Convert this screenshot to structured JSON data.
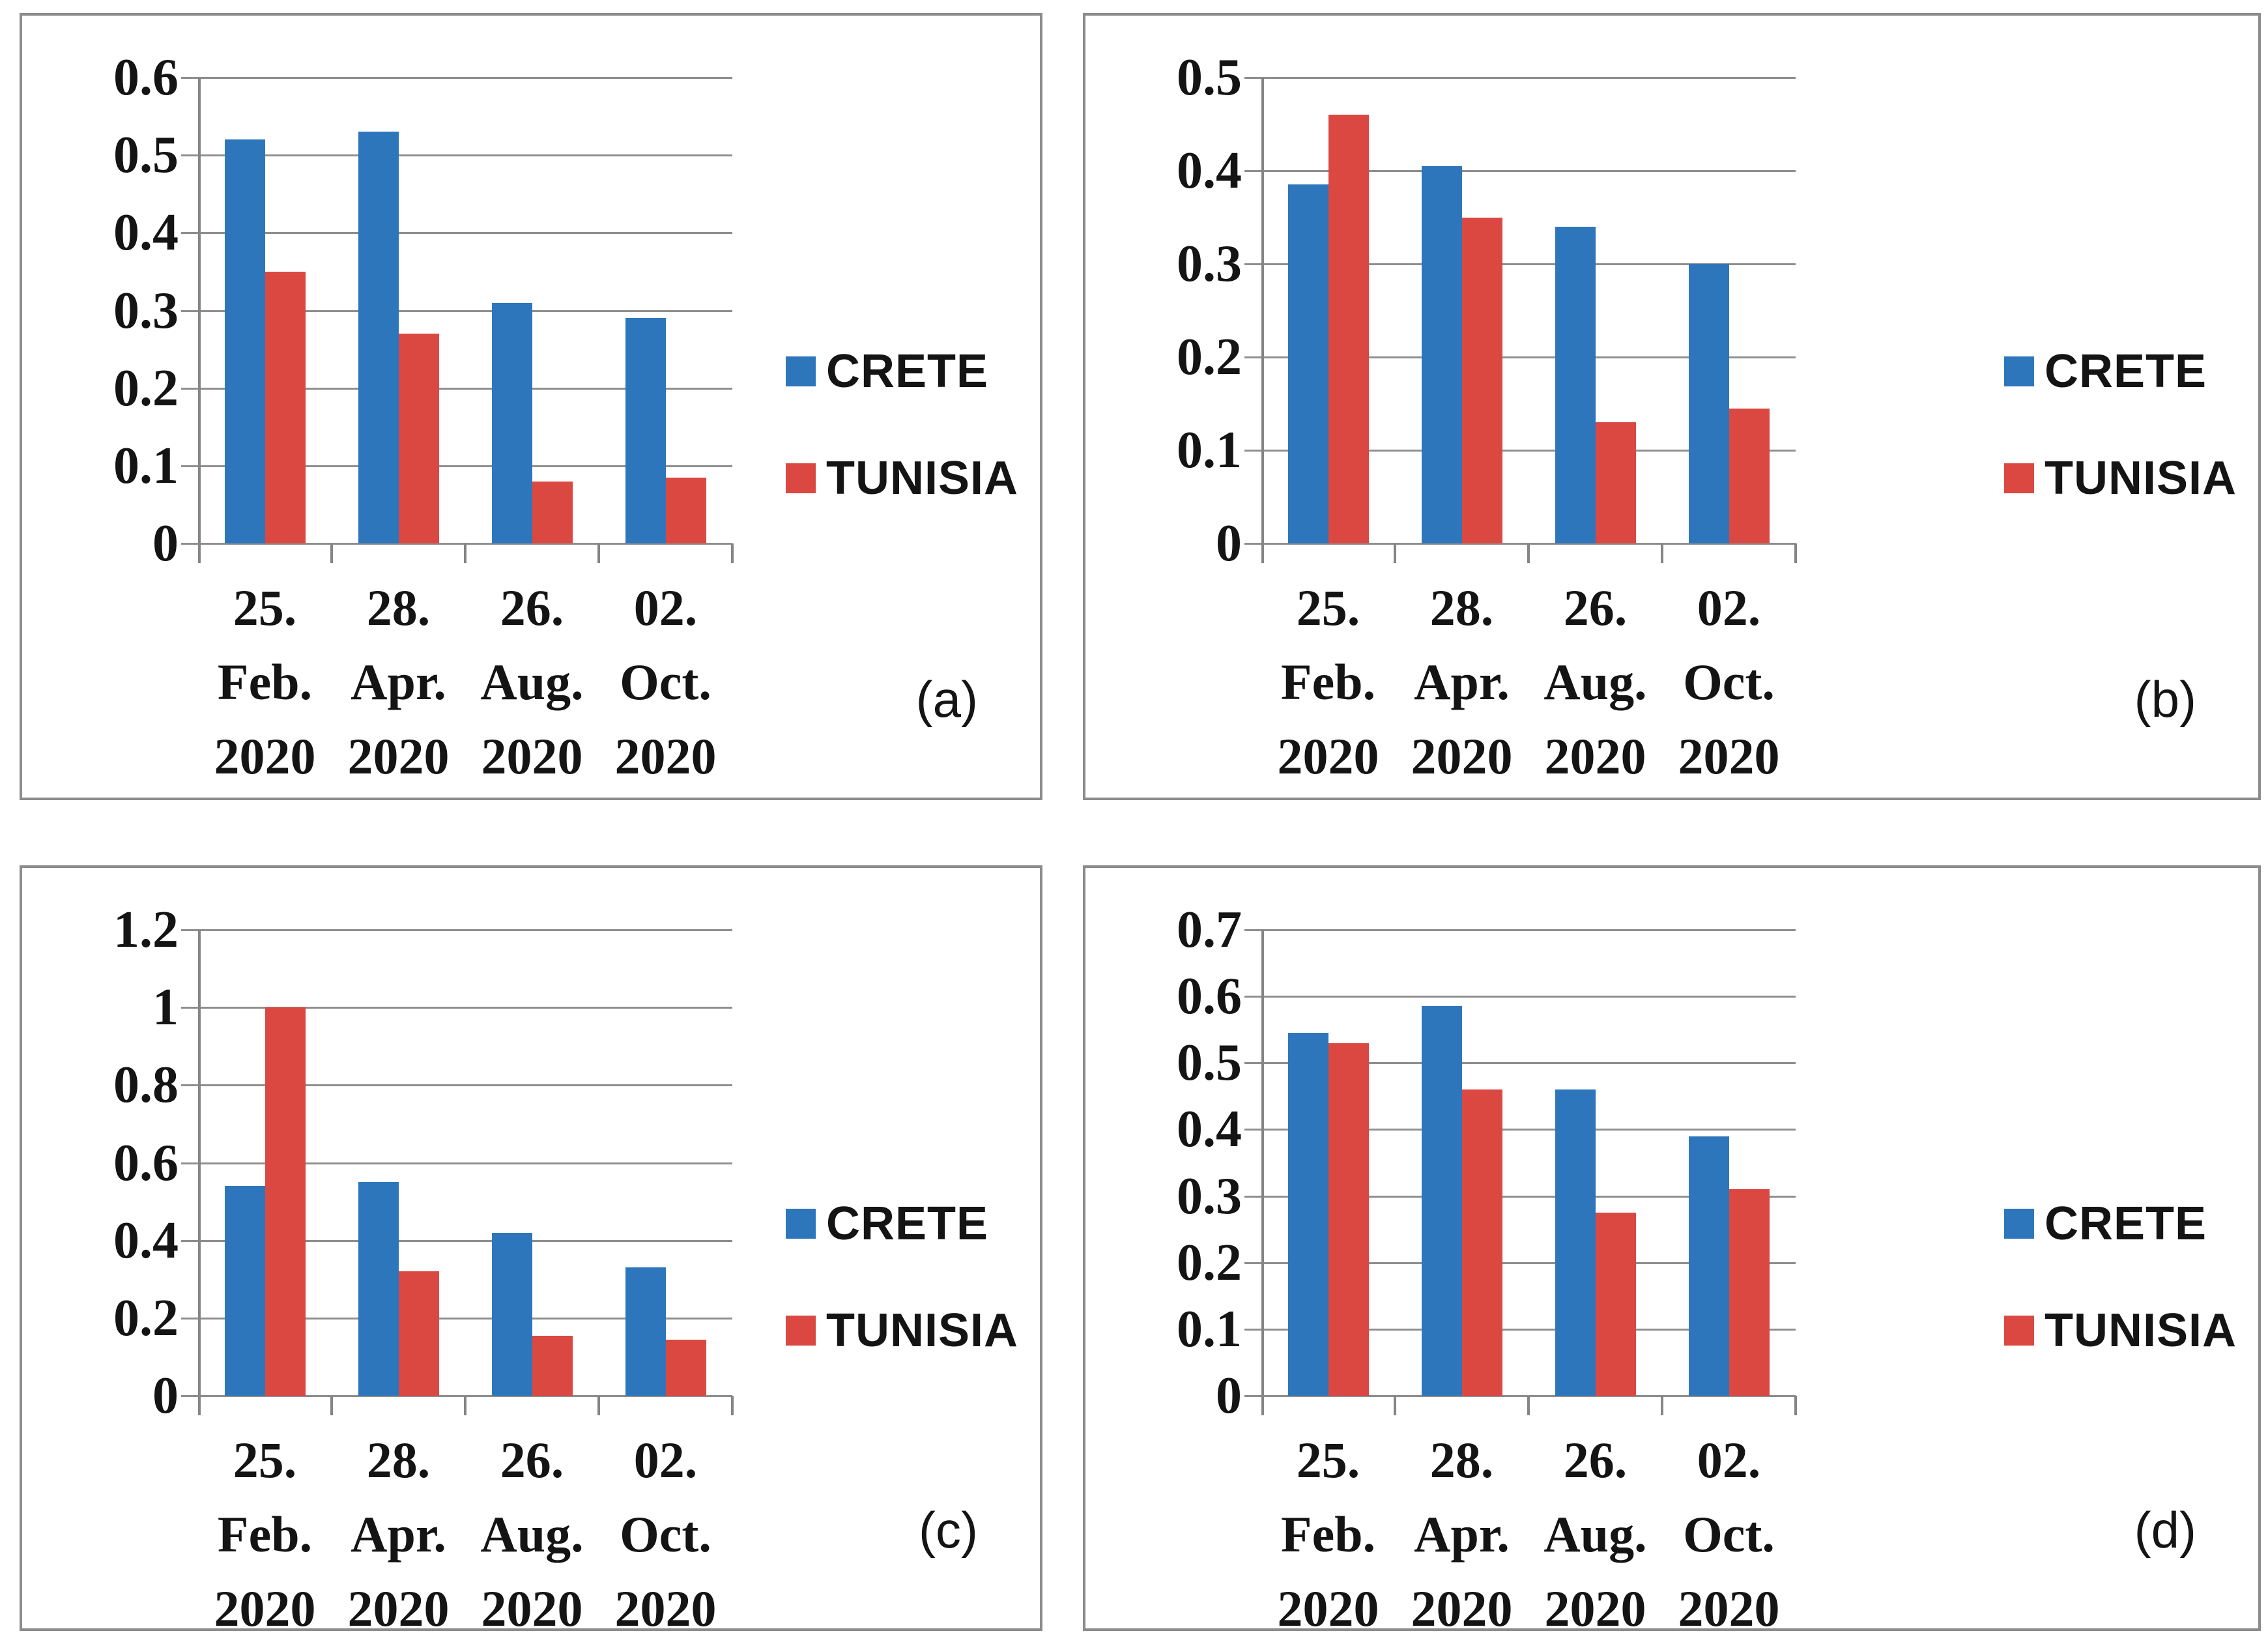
{
  "figure": {
    "background": "#ffffff",
    "description_labels": [
      "(a)",
      "(b)",
      "(c)",
      "(d)"
    ]
  },
  "colors": {
    "crete": "#2e76bc",
    "tunisia": "#db4842",
    "grid": "#8e8e8e",
    "axis": "#858585",
    "panel_border": "#8c8c8c",
    "text": "#141414"
  },
  "legend": {
    "position": "right",
    "items": [
      {
        "label": "CRETE",
        "color_key": "crete"
      },
      {
        "label": "TUNISIA",
        "color_key": "tunisia"
      }
    ]
  },
  "chart_data": [
    {
      "type": "bar",
      "panel_label": "(a)",
      "ymax": 0.6,
      "yticks": [
        "0.6",
        "0.5",
        "0.4",
        "0.3",
        "0.2",
        "0.1",
        "0"
      ],
      "categories": [
        "25. Feb. 2020",
        "28. Apr. 2020",
        "26. Aug. 2020",
        "02. Oct. 2020"
      ],
      "cat_lines": [
        [
          "25.",
          "Feb.",
          "2020"
        ],
        [
          "28.",
          "Apr.",
          "2020"
        ],
        [
          "26.",
          "Aug.",
          "2020"
        ],
        [
          "02.",
          "Oct.",
          "2020"
        ]
      ],
      "series": [
        {
          "name": "CRETE",
          "color_key": "crete",
          "values": [
            0.52,
            0.53,
            0.31,
            0.29
          ]
        },
        {
          "name": "TUNISIA",
          "color_key": "tunisia",
          "values": [
            0.35,
            0.27,
            0.08,
            0.085
          ]
        }
      ],
      "grid": true,
      "legend_position": "right"
    },
    {
      "type": "bar",
      "panel_label": "(b)",
      "ymax": 0.5,
      "yticks": [
        "0.5",
        "0.4",
        "0.3",
        "0.2",
        "0.1",
        "0"
      ],
      "categories": [
        "25. Feb. 2020",
        "28. Apr. 2020",
        "26. Aug. 2020",
        "02. Oct. 2020"
      ],
      "cat_lines": [
        [
          "25.",
          "Feb.",
          "2020"
        ],
        [
          "28.",
          "Apr.",
          "2020"
        ],
        [
          "26.",
          "Aug.",
          "2020"
        ],
        [
          "02.",
          "Oct.",
          "2020"
        ]
      ],
      "series": [
        {
          "name": "CRETE",
          "color_key": "crete",
          "values": [
            0.385,
            0.405,
            0.34,
            0.3
          ]
        },
        {
          "name": "TUNISIA",
          "color_key": "tunisia",
          "values": [
            0.46,
            0.35,
            0.13,
            0.145
          ]
        }
      ],
      "grid": true,
      "legend_position": "right"
    },
    {
      "type": "bar",
      "panel_label": "(c)",
      "ymax": 1.2,
      "yticks": [
        "1.2",
        "1",
        "0.8",
        "0.6",
        "0.4",
        "0.2",
        "0"
      ],
      "categories": [
        "25. Feb. 2020",
        "28. Apr. 2020",
        "26. Aug. 2020",
        "02. Oct. 2020"
      ],
      "cat_lines": [
        [
          "25.",
          "Feb.",
          "2020"
        ],
        [
          "28.",
          "Apr.",
          "2020"
        ],
        [
          "26.",
          "Aug.",
          "2020"
        ],
        [
          "02.",
          "Oct.",
          "2020"
        ]
      ],
      "series": [
        {
          "name": "CRETE",
          "color_key": "crete",
          "values": [
            0.54,
            0.55,
            0.42,
            0.33
          ]
        },
        {
          "name": "TUNISIA",
          "color_key": "tunisia",
          "values": [
            1.0,
            0.32,
            0.155,
            0.145
          ]
        }
      ],
      "grid": true,
      "legend_position": "right"
    },
    {
      "type": "bar",
      "panel_label": "(d)",
      "ymax": 0.7,
      "yticks": [
        "0.7",
        "0.6",
        "0.5",
        "0.4",
        "0.3",
        "0.2",
        "0.1",
        "0"
      ],
      "categories": [
        "25. Feb. 2020",
        "28. Apr. 2020",
        "26. Aug. 2020",
        "02. Oct. 2020"
      ],
      "cat_lines": [
        [
          "25.",
          "Feb.",
          "2020"
        ],
        [
          "28.",
          "Apr.",
          "2020"
        ],
        [
          "26.",
          "Aug.",
          "2020"
        ],
        [
          "02.",
          "Oct.",
          "2020"
        ]
      ],
      "series": [
        {
          "name": "CRETE",
          "color_key": "crete",
          "values": [
            0.545,
            0.585,
            0.46,
            0.39
          ]
        },
        {
          "name": "TUNISIA",
          "color_key": "tunisia",
          "values": [
            0.53,
            0.46,
            0.275,
            0.31
          ]
        }
      ],
      "grid": true,
      "legend_position": "right"
    }
  ]
}
